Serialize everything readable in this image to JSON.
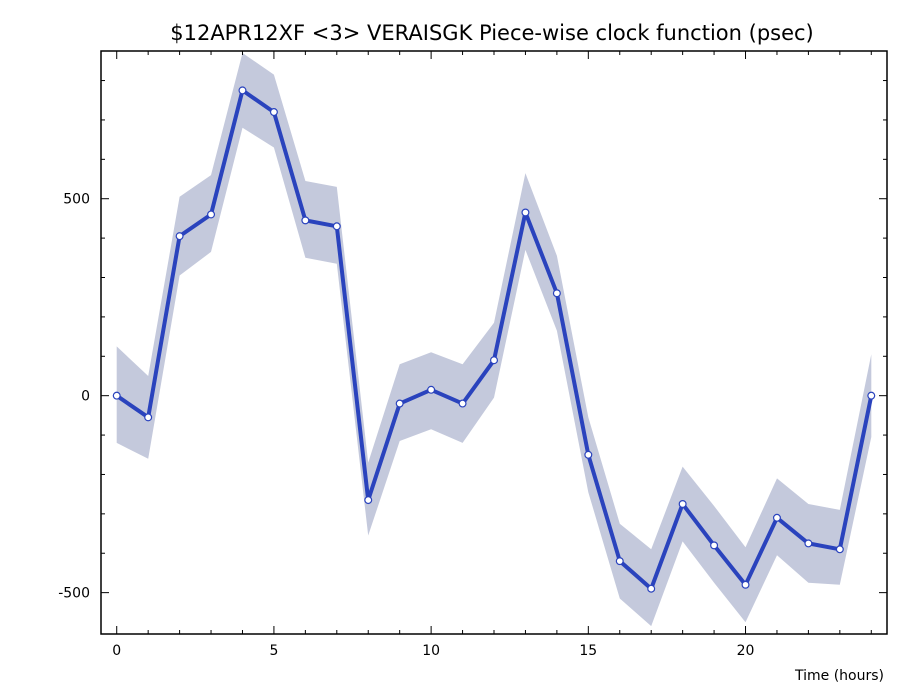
{
  "chart_data": {
    "type": "line",
    "title": "$12APR12XF <3>  VERAISGK  Piece-wise clock function (psec)",
    "xlabel": "Time (hours)",
    "ylabel": "",
    "xlim": [
      -0.5,
      24.5
    ],
    "ylim": [
      -605,
      875
    ],
    "x_ticks": [
      0,
      5,
      10,
      15,
      20
    ],
    "y_ticks": [
      -500,
      0,
      500
    ],
    "grid": false,
    "series": [
      {
        "x": [
          0,
          1,
          2,
          3,
          4,
          5,
          6,
          7,
          8,
          9,
          10,
          11,
          12,
          13,
          14,
          15,
          16,
          17,
          18,
          19,
          20,
          21,
          22,
          23,
          24
        ],
        "values": [
          0,
          -55,
          405,
          460,
          775,
          720,
          445,
          430,
          -265,
          -20,
          15,
          -20,
          90,
          465,
          260,
          -150,
          -420,
          -490,
          -275,
          -380,
          -480,
          -310,
          -375,
          -390,
          0
        ],
        "band_upper": [
          125,
          50,
          505,
          560,
          870,
          815,
          545,
          530,
          -170,
          80,
          110,
          80,
          185,
          565,
          355,
          -55,
          -325,
          -390,
          -180,
          -280,
          -385,
          -210,
          -275,
          -290,
          105
        ],
        "band_lower": [
          -120,
          -160,
          305,
          365,
          680,
          630,
          350,
          335,
          -355,
          -115,
          -85,
          -120,
          -5,
          370,
          165,
          -245,
          -515,
          -585,
          -370,
          -475,
          -575,
          -405,
          -475,
          -480,
          -105
        ]
      }
    ],
    "colors": {
      "line": "#2a43bd",
      "band": "#c4c9dc",
      "marker_fill": "#ffffff"
    }
  }
}
